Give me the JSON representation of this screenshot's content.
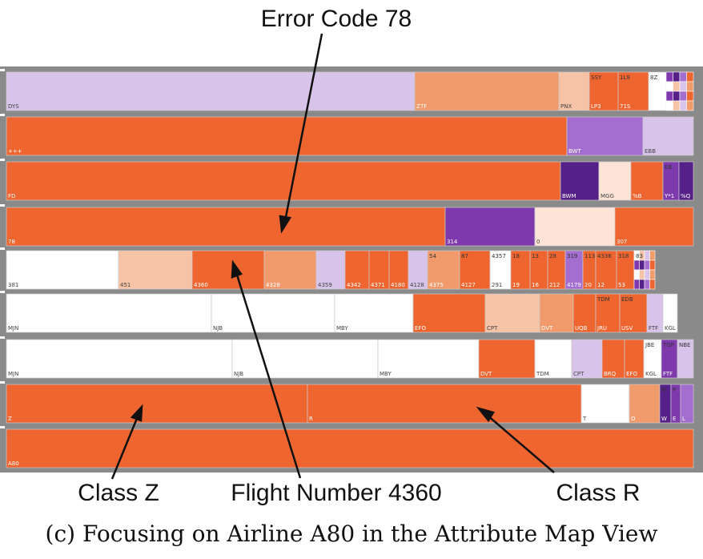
{
  "annotations": {
    "top": "Error Code 78",
    "class_z": "Class Z",
    "flight": "Flight Number 4360",
    "class_r": "Class R"
  },
  "caption": "(c) Focusing on Airline A80 in the Attribute Map View",
  "colors": {
    "background": "#ffffff",
    "frame": "#8a8a8a",
    "orange": "#ef6530",
    "orange_mid": "#f19a6c",
    "peach": "#f6c3a6",
    "pale": "#fde4d6",
    "white": "#fefefe",
    "lavender": "#d8c4eb",
    "violet": "#a46ed0",
    "purple": "#7e3aac",
    "dark_purple": "#552088"
  },
  "rows": [
    {
      "name": "row-1",
      "cells": [
        {
          "label": "DYS",
          "w": 510,
          "c": "lavender"
        },
        {
          "label": "Z7F",
          "w": 180,
          "c": "orange_mid"
        },
        {
          "label": "PNX",
          "w": 38,
          "c": "peach"
        },
        {
          "label": "LP3",
          "w": 36,
          "c": "orange",
          "top": "SSY"
        },
        {
          "label": "71S",
          "w": 38,
          "c": "orange",
          "top": "1L9"
        },
        {
          "label": "",
          "w": 22,
          "c": "white",
          "top": "8Z"
        },
        {
          "label": "",
          "w": 34,
          "c": "mosaic"
        }
      ]
    },
    {
      "name": "row-2",
      "cells": [
        {
          "label": "+++",
          "w": 700,
          "c": "orange"
        },
        {
          "label": "BWT",
          "w": 95,
          "c": "violet"
        },
        {
          "label": "EBB",
          "w": 63,
          "c": "lavender"
        }
      ]
    },
    {
      "name": "row-3",
      "cells": [
        {
          "label": "FD",
          "w": 692,
          "c": "orange"
        },
        {
          "label": "BWM",
          "w": 48,
          "c": "dark_purple"
        },
        {
          "label": "MGG",
          "w": 40,
          "c": "pale"
        },
        {
          "label": "%B",
          "w": 40,
          "c": "orange"
        },
        {
          "label": "Y*1",
          "w": 20,
          "c": "purple",
          "top": "EB"
        },
        {
          "label": "%Q",
          "w": 18,
          "c": "dark_purple"
        }
      ]
    },
    {
      "name": "row-4",
      "cells": [
        {
          "label": "78",
          "w": 548,
          "c": "orange"
        },
        {
          "label": "314",
          "w": 112,
          "c": "purple"
        },
        {
          "label": "0",
          "w": 100,
          "c": "pale"
        },
        {
          "label": "307",
          "w": 98,
          "c": "orange"
        }
      ]
    },
    {
      "name": "row-5",
      "cells": [
        {
          "label": "381",
          "w": 140,
          "c": "white"
        },
        {
          "label": "451",
          "w": 92,
          "c": "peach"
        },
        {
          "label": "4360",
          "w": 90,
          "c": "orange"
        },
        {
          "label": "4328",
          "w": 65,
          "c": "orange_mid"
        },
        {
          "label": "4359",
          "w": 36,
          "c": "lavender"
        },
        {
          "label": "4342",
          "w": 30,
          "c": "orange"
        },
        {
          "label": "4371",
          "w": 25,
          "c": "orange"
        },
        {
          "label": "4180",
          "w": 24,
          "c": "orange"
        },
        {
          "label": "4128",
          "w": 24,
          "c": "lavender"
        },
        {
          "label": "4375",
          "w": 40,
          "c": "orange_mid",
          "top": "54"
        },
        {
          "label": "4127",
          "w": 38,
          "c": "orange",
          "top": "87"
        },
        {
          "label": "291",
          "w": 26,
          "c": "white",
          "top": "4357"
        },
        {
          "label": "19",
          "w": 24,
          "c": "orange",
          "top": "18"
        },
        {
          "label": "16",
          "w": 22,
          "c": "orange",
          "top": "13"
        },
        {
          "label": "212",
          "w": 22,
          "c": "orange",
          "top": "28"
        },
        {
          "label": "4179",
          "w": 22,
          "c": "violet",
          "top": "319"
        },
        {
          "label": "20",
          "w": 16,
          "c": "orange",
          "top": "113"
        },
        {
          "label": "12",
          "w": 26,
          "c": "orange",
          "top": "4336"
        },
        {
          "label": "53",
          "w": 22,
          "c": "orange",
          "top": "318"
        },
        {
          "label": "",
          "w": 26,
          "c": "mosaic",
          "top": "83"
        }
      ]
    },
    {
      "name": "row-6",
      "cells": [
        {
          "label": "MJN",
          "w": 256,
          "c": "white"
        },
        {
          "label": "NJB",
          "w": 154,
          "c": "white"
        },
        {
          "label": "MBY",
          "w": 98,
          "c": "white"
        },
        {
          "label": "EFO",
          "w": 90,
          "c": "orange"
        },
        {
          "label": "CPT",
          "w": 68,
          "c": "peach"
        },
        {
          "label": "DVT",
          "w": 42,
          "c": "orange_mid"
        },
        {
          "label": "UQB",
          "w": 28,
          "c": "orange"
        },
        {
          "label": "JRU",
          "w": 30,
          "c": "orange",
          "top": "TDM"
        },
        {
          "label": "USV",
          "w": 34,
          "c": "orange",
          "top": "EDB"
        },
        {
          "label": "FTF",
          "w": 20,
          "c": "lavender"
        },
        {
          "label": "KGL",
          "w": 18,
          "c": "white"
        }
      ]
    },
    {
      "name": "row-7",
      "cells": [
        {
          "label": "MJN",
          "w": 282,
          "c": "white"
        },
        {
          "label": "NJB",
          "w": 182,
          "c": "white"
        },
        {
          "label": "MBY",
          "w": 126,
          "c": "white"
        },
        {
          "label": "DVT",
          "w": 70,
          "c": "orange"
        },
        {
          "label": "TDM",
          "w": 46,
          "c": "white"
        },
        {
          "label": "CPT",
          "w": 38,
          "c": "lavender"
        },
        {
          "label": "BRQ",
          "w": 28,
          "c": "orange"
        },
        {
          "label": "EFO",
          "w": 24,
          "c": "orange"
        },
        {
          "label": "KGL",
          "w": 22,
          "c": "white",
          "top": "JBE"
        },
        {
          "label": "FTF",
          "w": 20,
          "c": "purple",
          "top": "TGP"
        },
        {
          "label": "",
          "w": 20,
          "c": "lavender",
          "top": "NBE"
        }
      ]
    },
    {
      "name": "row-8",
      "cells": [
        {
          "label": "Z",
          "w": 376,
          "c": "orange"
        },
        {
          "label": "R",
          "w": 342,
          "c": "orange"
        },
        {
          "label": "T",
          "w": 60,
          "c": "white"
        },
        {
          "label": "O",
          "w": 38,
          "c": "orange_mid"
        },
        {
          "label": "W",
          "w": 14,
          "c": "dark_purple",
          "top": "N"
        },
        {
          "label": "E",
          "w": 12,
          "c": "purple",
          "top": "P"
        },
        {
          "label": "L",
          "w": 16,
          "c": "violet"
        }
      ]
    },
    {
      "name": "row-9",
      "cells": [
        {
          "label": "A80",
          "w": 858,
          "c": "orange"
        }
      ]
    }
  ]
}
